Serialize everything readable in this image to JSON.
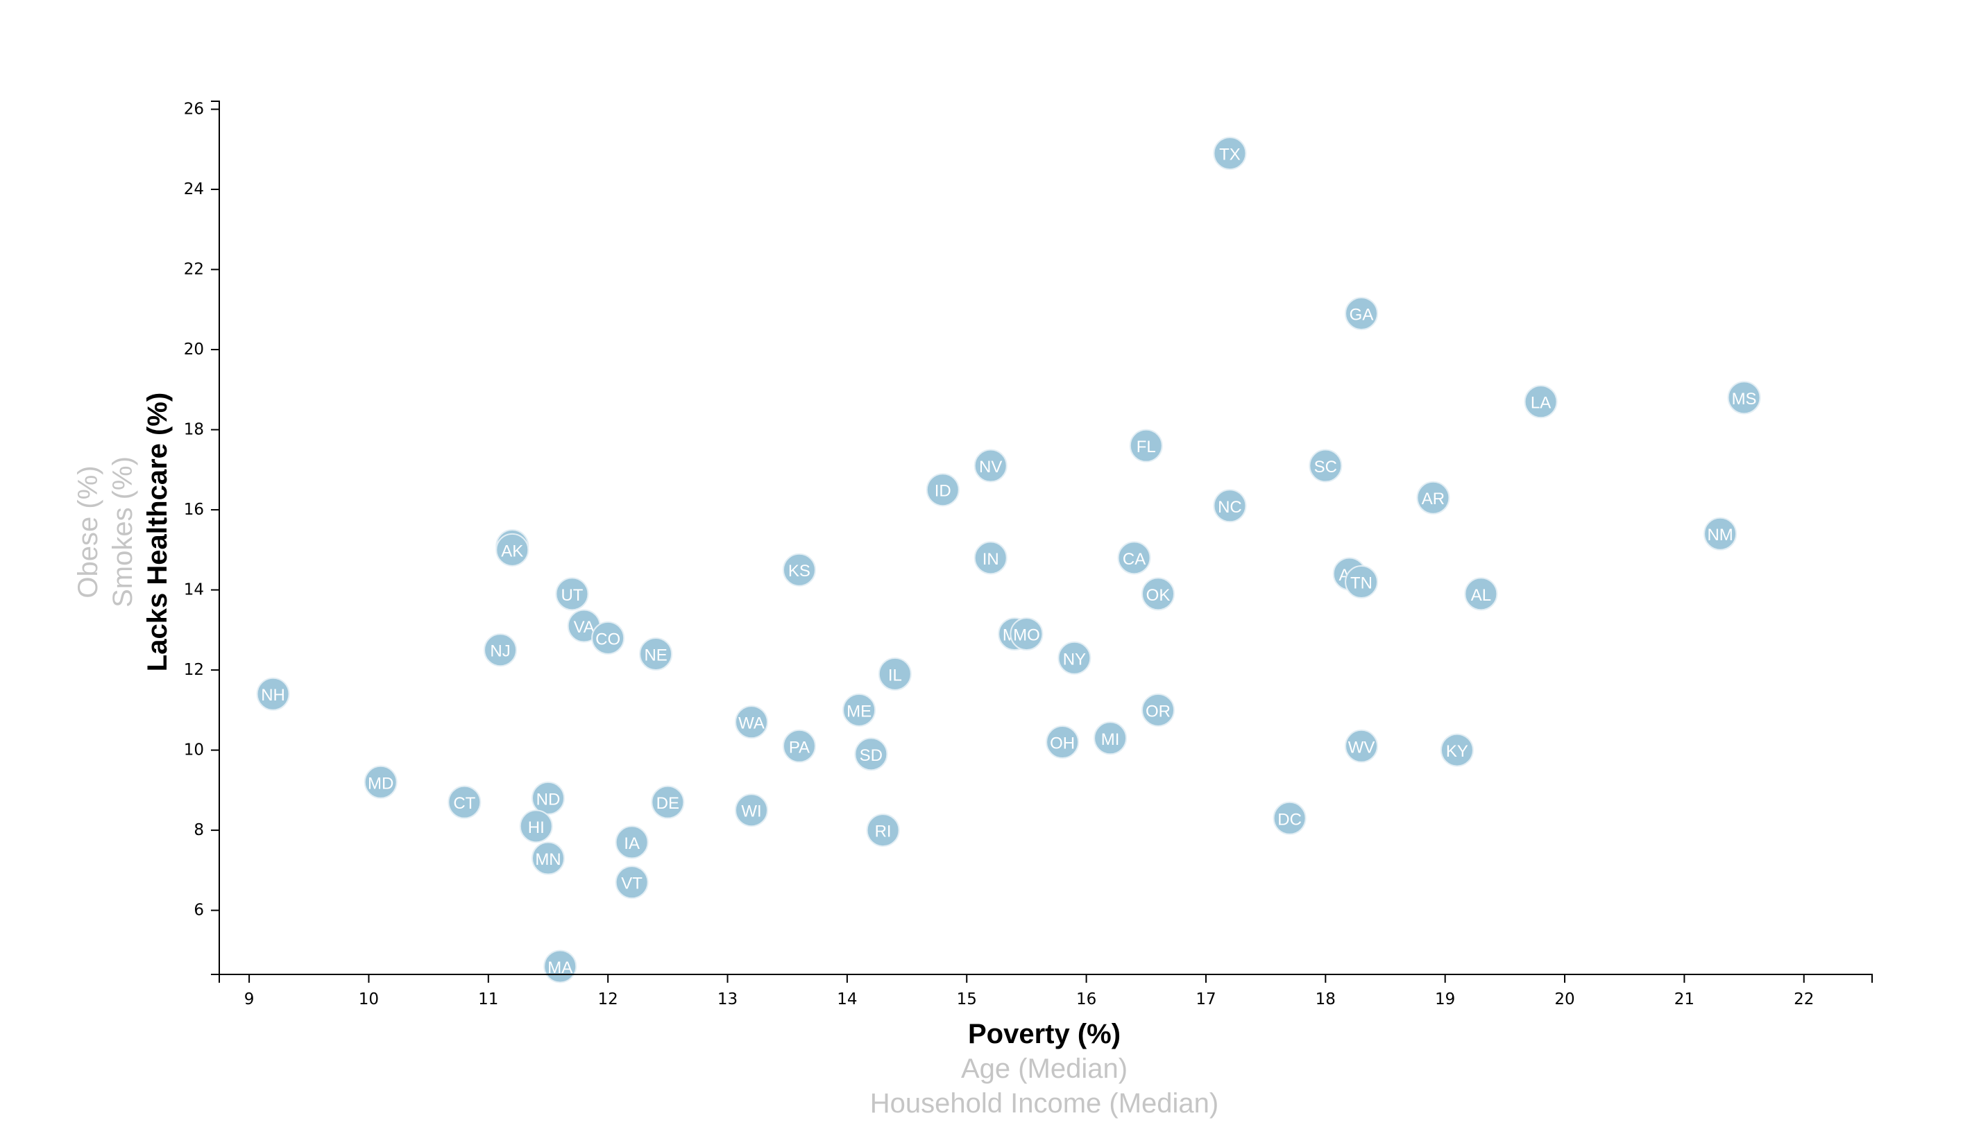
{
  "chart_data": {
    "type": "scatter",
    "x_axis": {
      "options": [
        "Poverty (%)",
        "Age (Median)",
        "Household Income (Median)"
      ],
      "active": "Poverty (%)",
      "range": [
        8.75,
        22.57
      ],
      "ticks": [
        9,
        10,
        11,
        12,
        13,
        14,
        15,
        16,
        17,
        18,
        19,
        20,
        21,
        22
      ]
    },
    "y_axis": {
      "options": [
        "Lacks Healthcare (%)",
        "Smokes (%)",
        "Obese (%)"
      ],
      "active": "Lacks Healthcare (%)",
      "range": [
        4.4,
        26.2
      ],
      "ticks": [
        6,
        8,
        10,
        12,
        14,
        16,
        18,
        20,
        22,
        24,
        26
      ]
    },
    "colors": {
      "marker": "#9ec6da",
      "marker_label": "#ffffff",
      "inactive_title": "#c5c5c5",
      "active_title": "#000000"
    },
    "points": [
      {
        "abbr": "TX",
        "x": 17.2,
        "y": 24.9
      },
      {
        "abbr": "GA",
        "x": 18.3,
        "y": 20.9
      },
      {
        "abbr": "LA",
        "x": 19.8,
        "y": 18.7
      },
      {
        "abbr": "MS",
        "x": 21.5,
        "y": 18.8
      },
      {
        "abbr": "FL",
        "x": 16.5,
        "y": 17.6
      },
      {
        "abbr": "NV",
        "x": 15.2,
        "y": 17.1
      },
      {
        "abbr": "SC",
        "x": 18.0,
        "y": 17.1
      },
      {
        "abbr": "ID",
        "x": 14.8,
        "y": 16.5
      },
      {
        "abbr": "AR",
        "x": 18.9,
        "y": 16.3
      },
      {
        "abbr": "NC",
        "x": 17.2,
        "y": 16.1
      },
      {
        "abbr": "NM",
        "x": 21.3,
        "y": 15.4
      },
      {
        "abbr": "WY",
        "x": 11.2,
        "y": 15.1
      },
      {
        "abbr": "AK",
        "x": 11.2,
        "y": 15.0
      },
      {
        "abbr": "IN",
        "x": 15.2,
        "y": 14.8
      },
      {
        "abbr": "CA",
        "x": 16.4,
        "y": 14.8
      },
      {
        "abbr": "KS",
        "x": 13.6,
        "y": 14.5
      },
      {
        "abbr": "AZ",
        "x": 18.2,
        "y": 14.4
      },
      {
        "abbr": "TN",
        "x": 18.3,
        "y": 14.2
      },
      {
        "abbr": "UT",
        "x": 11.7,
        "y": 13.9
      },
      {
        "abbr": "OK",
        "x": 16.6,
        "y": 13.9
      },
      {
        "abbr": "AL",
        "x": 19.3,
        "y": 13.9
      },
      {
        "abbr": "VA",
        "x": 11.8,
        "y": 13.1
      },
      {
        "abbr": "MT",
        "x": 15.4,
        "y": 12.9
      },
      {
        "abbr": "MO",
        "x": 15.5,
        "y": 12.9
      },
      {
        "abbr": "CO",
        "x": 12.0,
        "y": 12.8
      },
      {
        "abbr": "NJ",
        "x": 11.1,
        "y": 12.5
      },
      {
        "abbr": "NE",
        "x": 12.4,
        "y": 12.4
      },
      {
        "abbr": "NY",
        "x": 15.9,
        "y": 12.3
      },
      {
        "abbr": "IL",
        "x": 14.4,
        "y": 11.9
      },
      {
        "abbr": "NH",
        "x": 9.2,
        "y": 11.4
      },
      {
        "abbr": "ME",
        "x": 14.1,
        "y": 11.0
      },
      {
        "abbr": "OR",
        "x": 16.6,
        "y": 11.0
      },
      {
        "abbr": "WA",
        "x": 13.2,
        "y": 10.7
      },
      {
        "abbr": "MI",
        "x": 16.2,
        "y": 10.3
      },
      {
        "abbr": "OH",
        "x": 15.8,
        "y": 10.2
      },
      {
        "abbr": "PA",
        "x": 13.6,
        "y": 10.1
      },
      {
        "abbr": "WV",
        "x": 18.3,
        "y": 10.1
      },
      {
        "abbr": "KY",
        "x": 19.1,
        "y": 10.0
      },
      {
        "abbr": "SD",
        "x": 14.2,
        "y": 9.9
      },
      {
        "abbr": "MD",
        "x": 10.1,
        "y": 9.2
      },
      {
        "abbr": "ND",
        "x": 11.5,
        "y": 8.8
      },
      {
        "abbr": "CT",
        "x": 10.8,
        "y": 8.7
      },
      {
        "abbr": "DE",
        "x": 12.5,
        "y": 8.7
      },
      {
        "abbr": "WI",
        "x": 13.2,
        "y": 8.5
      },
      {
        "abbr": "DC",
        "x": 17.7,
        "y": 8.3
      },
      {
        "abbr": "HI",
        "x": 11.4,
        "y": 8.1
      },
      {
        "abbr": "RI",
        "x": 14.3,
        "y": 8.0
      },
      {
        "abbr": "IA",
        "x": 12.2,
        "y": 7.7
      },
      {
        "abbr": "MN",
        "x": 11.5,
        "y": 7.3
      },
      {
        "abbr": "VT",
        "x": 12.2,
        "y": 6.7
      },
      {
        "abbr": "MA",
        "x": 11.6,
        "y": 4.6
      }
    ]
  }
}
